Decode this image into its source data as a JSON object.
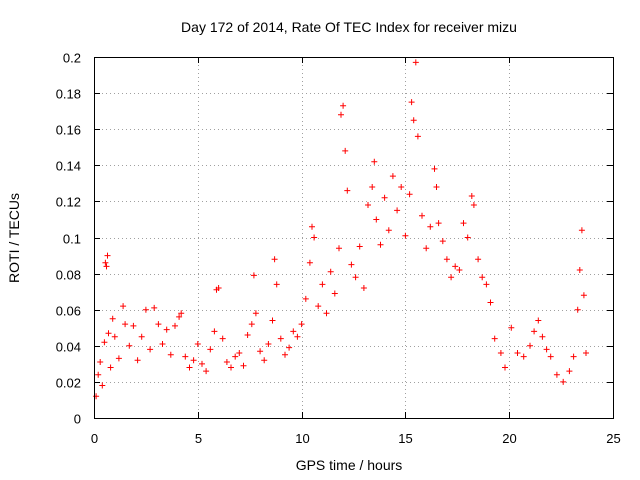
{
  "chart_data": {
    "type": "scatter",
    "title": "Day 172 of 2014, Rate Of TEC Index for receiver mizu",
    "xlabel": "GPS time / hours",
    "ylabel": "ROTI / TECUs",
    "xlim": [
      0,
      25
    ],
    "ylim": [
      0,
      0.2
    ],
    "x_ticks": [
      "0",
      "5",
      "10",
      "15",
      "20",
      "25"
    ],
    "y_ticks": [
      "0",
      "0.02",
      "0.04",
      "0.06",
      "0.08",
      "0.1",
      "0.12",
      "0.14",
      "0.16",
      "0.18",
      "0.2"
    ],
    "grid": true,
    "marker": "+",
    "color": "#ff0000",
    "series": [
      {
        "name": "ROTI",
        "points": [
          [
            0.1,
            0.012
          ],
          [
            0.2,
            0.024
          ],
          [
            0.3,
            0.031
          ],
          [
            0.4,
            0.018
          ],
          [
            0.5,
            0.042
          ],
          [
            0.55,
            0.086
          ],
          [
            0.6,
            0.084
          ],
          [
            0.65,
            0.09
          ],
          [
            0.7,
            0.047
          ],
          [
            0.8,
            0.028
          ],
          [
            0.9,
            0.055
          ],
          [
            1.0,
            0.045
          ],
          [
            1.2,
            0.033
          ],
          [
            1.4,
            0.062
          ],
          [
            1.5,
            0.052
          ],
          [
            1.7,
            0.04
          ],
          [
            1.9,
            0.051
          ],
          [
            2.1,
            0.032
          ],
          [
            2.3,
            0.045
          ],
          [
            2.5,
            0.06
          ],
          [
            2.7,
            0.038
          ],
          [
            2.9,
            0.061
          ],
          [
            3.1,
            0.052
          ],
          [
            3.3,
            0.041
          ],
          [
            3.5,
            0.049
          ],
          [
            3.7,
            0.035
          ],
          [
            3.9,
            0.051
          ],
          [
            4.1,
            0.056
          ],
          [
            4.2,
            0.058
          ],
          [
            4.4,
            0.034
          ],
          [
            4.6,
            0.028
          ],
          [
            4.8,
            0.032
          ],
          [
            5.0,
            0.041
          ],
          [
            5.2,
            0.03
          ],
          [
            5.4,
            0.026
          ],
          [
            5.6,
            0.038
          ],
          [
            5.8,
            0.048
          ],
          [
            5.9,
            0.071
          ],
          [
            6.0,
            0.072
          ],
          [
            6.2,
            0.044
          ],
          [
            6.4,
            0.031
          ],
          [
            6.6,
            0.028
          ],
          [
            6.8,
            0.034
          ],
          [
            7.0,
            0.036
          ],
          [
            7.2,
            0.029
          ],
          [
            7.4,
            0.046
          ],
          [
            7.6,
            0.052
          ],
          [
            7.7,
            0.079
          ],
          [
            7.8,
            0.058
          ],
          [
            8.0,
            0.037
          ],
          [
            8.2,
            0.032
          ],
          [
            8.4,
            0.041
          ],
          [
            8.6,
            0.054
          ],
          [
            8.7,
            0.088
          ],
          [
            8.8,
            0.074
          ],
          [
            9.0,
            0.044
          ],
          [
            9.2,
            0.035
          ],
          [
            9.4,
            0.039
          ],
          [
            9.6,
            0.048
          ],
          [
            9.8,
            0.045
          ],
          [
            10.0,
            0.052
          ],
          [
            10.2,
            0.066
          ],
          [
            10.4,
            0.086
          ],
          [
            10.5,
            0.106
          ],
          [
            10.6,
            0.1
          ],
          [
            10.8,
            0.062
          ],
          [
            11.0,
            0.074
          ],
          [
            11.2,
            0.058
          ],
          [
            11.4,
            0.081
          ],
          [
            11.6,
            0.069
          ],
          [
            11.8,
            0.094
          ],
          [
            11.9,
            0.168
          ],
          [
            12.0,
            0.173
          ],
          [
            12.1,
            0.148
          ],
          [
            12.2,
            0.126
          ],
          [
            12.4,
            0.085
          ],
          [
            12.6,
            0.078
          ],
          [
            12.8,
            0.095
          ],
          [
            13.0,
            0.072
          ],
          [
            13.2,
            0.118
          ],
          [
            13.4,
            0.128
          ],
          [
            13.5,
            0.142
          ],
          [
            13.6,
            0.11
          ],
          [
            13.8,
            0.096
          ],
          [
            14.0,
            0.122
          ],
          [
            14.2,
            0.104
          ],
          [
            14.4,
            0.134
          ],
          [
            14.6,
            0.115
          ],
          [
            14.8,
            0.128
          ],
          [
            15.0,
            0.101
          ],
          [
            15.2,
            0.124
          ],
          [
            15.3,
            0.175
          ],
          [
            15.4,
            0.165
          ],
          [
            15.5,
            0.197
          ],
          [
            15.6,
            0.156
          ],
          [
            15.8,
            0.112
          ],
          [
            16.0,
            0.094
          ],
          [
            16.2,
            0.106
          ],
          [
            16.4,
            0.138
          ],
          [
            16.5,
            0.128
          ],
          [
            16.6,
            0.108
          ],
          [
            16.8,
            0.098
          ],
          [
            17.0,
            0.088
          ],
          [
            17.2,
            0.078
          ],
          [
            17.4,
            0.084
          ],
          [
            17.6,
            0.082
          ],
          [
            17.8,
            0.108
          ],
          [
            18.0,
            0.1
          ],
          [
            18.2,
            0.123
          ],
          [
            18.3,
            0.118
          ],
          [
            18.5,
            0.088
          ],
          [
            18.7,
            0.078
          ],
          [
            18.9,
            0.074
          ],
          [
            19.1,
            0.064
          ],
          [
            19.3,
            0.044
          ],
          [
            19.6,
            0.036
          ],
          [
            19.8,
            0.028
          ],
          [
            20.1,
            0.05
          ],
          [
            20.4,
            0.036
          ],
          [
            20.7,
            0.034
          ],
          [
            21.0,
            0.04
          ],
          [
            21.2,
            0.048
          ],
          [
            21.4,
            0.054
          ],
          [
            21.6,
            0.045
          ],
          [
            21.8,
            0.038
          ],
          [
            22.0,
            0.034
          ],
          [
            22.3,
            0.024
          ],
          [
            22.6,
            0.02
          ],
          [
            22.9,
            0.026
          ],
          [
            23.1,
            0.034
          ],
          [
            23.3,
            0.06
          ],
          [
            23.4,
            0.082
          ],
          [
            23.5,
            0.104
          ],
          [
            23.6,
            0.068
          ],
          [
            23.7,
            0.036
          ]
        ]
      }
    ]
  }
}
